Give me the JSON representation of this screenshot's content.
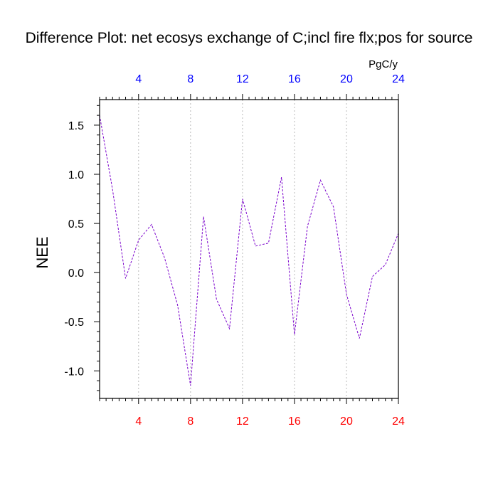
{
  "chart_data": {
    "type": "line",
    "title": "Difference Plot: net ecosys exchange of C;incl fire flx;pos for source",
    "units": "PgC/y",
    "ylabel": "NEE",
    "xlabel": "",
    "xlim": [
      1,
      24
    ],
    "ylim": [
      -1.28,
      1.76
    ],
    "y_ticks": [
      -1.0,
      -0.5,
      0.0,
      0.5,
      1.0,
      1.5
    ],
    "y_tick_labels": [
      "-1.0",
      "-0.5",
      "0.0",
      "0.5",
      "1.0",
      "1.5"
    ],
    "x_ticks": [
      4,
      8,
      12,
      16,
      20,
      24
    ],
    "x_tick_labels": [
      "4",
      "8",
      "12",
      "16",
      "20",
      "24"
    ],
    "bottom_tick_color": "#ff0000",
    "top_tick_color": "#0000ff",
    "line_color": "#7a00cc",
    "line_style": "dashed",
    "grid": "vertical dotted at major x ticks",
    "series": [
      {
        "x": [
          1,
          2,
          3,
          4,
          5,
          6,
          7,
          8,
          9,
          10,
          11,
          12,
          13,
          14,
          15,
          16,
          17,
          18,
          19,
          20,
          21,
          22,
          23,
          24
        ],
        "values": [
          1.6,
          0.84,
          -0.06,
          0.33,
          0.49,
          0.15,
          -0.33,
          -1.15,
          0.57,
          -0.27,
          -0.57,
          0.75,
          0.27,
          0.3,
          0.97,
          -0.63,
          0.47,
          0.94,
          0.67,
          -0.22,
          -0.67,
          -0.04,
          0.08,
          0.4
        ]
      }
    ]
  }
}
